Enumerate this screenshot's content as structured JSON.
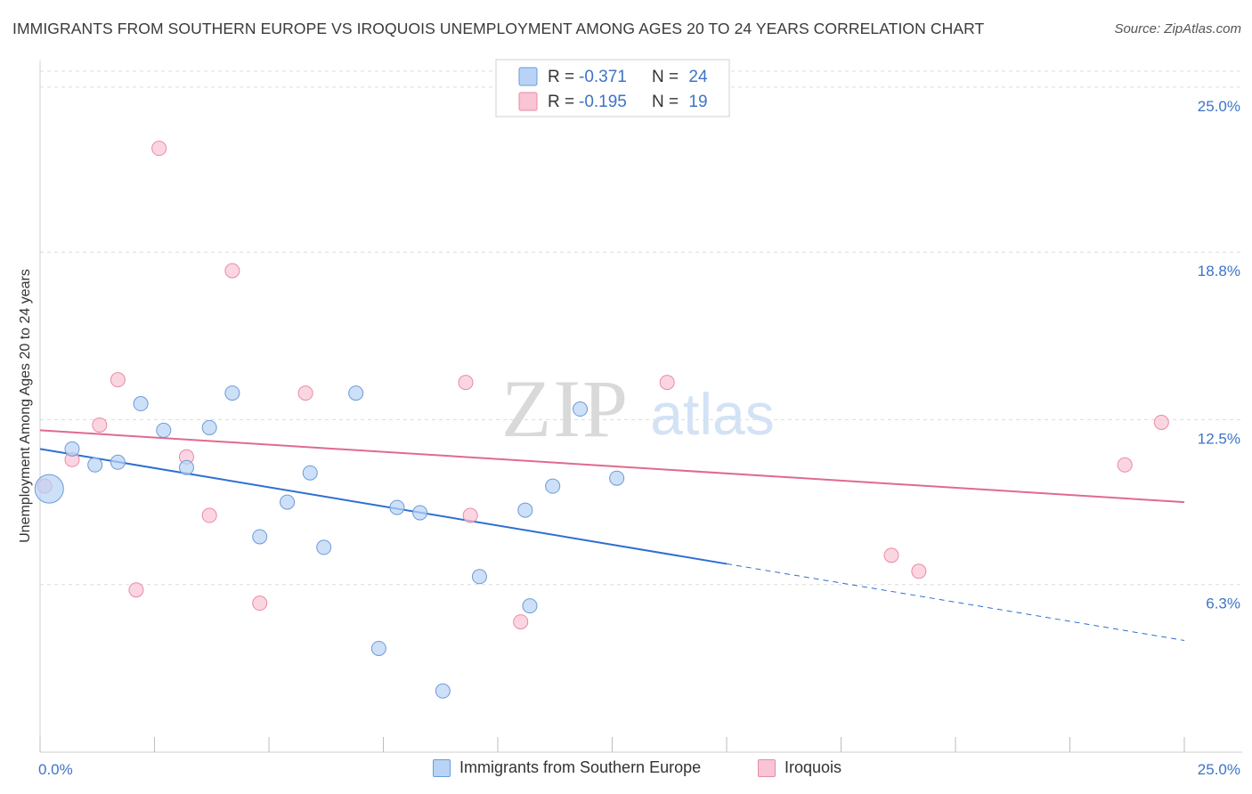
{
  "title": "IMMIGRANTS FROM SOUTHERN EUROPE VS IROQUOIS UNEMPLOYMENT AMONG AGES 20 TO 24 YEARS CORRELATION CHART",
  "source": "Source: ZipAtlas.com",
  "watermark": {
    "zip": "ZIP",
    "atlas": "atlas"
  },
  "colors": {
    "blue_fill": "#b8d3f5",
    "blue_stroke": "#6b9bd8",
    "blue_line": "#2e6fd1",
    "pink_fill": "#f9c4d4",
    "pink_stroke": "#e98aa6",
    "pink_line": "#e06a8f",
    "tick_text": "#3d74c6",
    "grid": "#dcdcdc"
  },
  "stats_legend": [
    {
      "series": "blue",
      "r_label": "R =",
      "r_value": "-0.371",
      "n_label": "N =",
      "n_value": "24"
    },
    {
      "series": "pink",
      "r_label": "R =",
      "r_value": "-0.195",
      "n_label": "N =",
      "n_value": "19"
    }
  ],
  "chart_data": {
    "type": "scatter",
    "title": "IMMIGRANTS FROM SOUTHERN EUROPE VS IROQUOIS UNEMPLOYMENT AMONG AGES 20 TO 24 YEARS CORRELATION CHART",
    "xlabel": "",
    "ylabel": "Unemployment Among Ages 20 to 24 years",
    "xlim": [
      0,
      25
    ],
    "ylim": [
      0,
      25.6
    ],
    "x_tick_labels": [
      {
        "value": 0,
        "label": "0.0%"
      },
      {
        "value": 25,
        "label": "25.0%"
      }
    ],
    "y_tick_labels": [
      {
        "value": 6.3,
        "label": "6.3%"
      },
      {
        "value": 12.5,
        "label": "12.5%"
      },
      {
        "value": 18.8,
        "label": "18.8%"
      },
      {
        "value": 25.0,
        "label": "25.0%"
      }
    ],
    "legend": [
      "Immigrants from Southern Europe",
      "Iroquois"
    ],
    "series": [
      {
        "name": "Immigrants from Southern Europe",
        "key": "blue",
        "points": [
          {
            "x": 0.2,
            "y": 9.9,
            "large": true
          },
          {
            "x": 0.7,
            "y": 11.4
          },
          {
            "x": 1.2,
            "y": 10.8
          },
          {
            "x": 1.7,
            "y": 10.9
          },
          {
            "x": 2.2,
            "y": 13.1
          },
          {
            "x": 2.7,
            "y": 12.1
          },
          {
            "x": 3.2,
            "y": 10.7
          },
          {
            "x": 3.7,
            "y": 12.2
          },
          {
            "x": 4.2,
            "y": 13.5
          },
          {
            "x": 4.8,
            "y": 8.1
          },
          {
            "x": 5.4,
            "y": 9.4
          },
          {
            "x": 5.9,
            "y": 10.5
          },
          {
            "x": 6.2,
            "y": 7.7
          },
          {
            "x": 6.9,
            "y": 13.5
          },
          {
            "x": 7.4,
            "y": 3.9
          },
          {
            "x": 7.8,
            "y": 9.2
          },
          {
            "x": 8.3,
            "y": 9.0
          },
          {
            "x": 8.8,
            "y": 2.3
          },
          {
            "x": 9.6,
            "y": 6.6
          },
          {
            "x": 10.6,
            "y": 9.1
          },
          {
            "x": 10.7,
            "y": 5.5
          },
          {
            "x": 11.2,
            "y": 10.0
          },
          {
            "x": 11.8,
            "y": 12.9
          },
          {
            "x": 12.6,
            "y": 10.3
          }
        ],
        "trend": {
          "x_start": 0,
          "y_start": 11.4,
          "x_solid_end": 15.0,
          "x_end": 25.0,
          "y_end": 4.2
        }
      },
      {
        "name": "Iroquois",
        "key": "pink",
        "points": [
          {
            "x": 0.1,
            "y": 10.0
          },
          {
            "x": 0.7,
            "y": 11.0
          },
          {
            "x": 1.3,
            "y": 12.3
          },
          {
            "x": 1.7,
            "y": 14.0
          },
          {
            "x": 2.1,
            "y": 6.1
          },
          {
            "x": 2.6,
            "y": 22.7
          },
          {
            "x": 3.2,
            "y": 11.1
          },
          {
            "x": 3.7,
            "y": 8.9
          },
          {
            "x": 4.2,
            "y": 18.1
          },
          {
            "x": 4.8,
            "y": 5.6
          },
          {
            "x": 5.8,
            "y": 13.5
          },
          {
            "x": 9.3,
            "y": 13.9
          },
          {
            "x": 9.4,
            "y": 8.9
          },
          {
            "x": 10.5,
            "y": 4.9
          },
          {
            "x": 13.7,
            "y": 13.9
          },
          {
            "x": 18.6,
            "y": 7.4
          },
          {
            "x": 19.2,
            "y": 6.8
          },
          {
            "x": 23.7,
            "y": 10.8
          },
          {
            "x": 24.5,
            "y": 12.4
          }
        ],
        "trend": {
          "x_start": 0,
          "y_start": 12.1,
          "x_end": 25.0,
          "y_end": 9.4
        }
      }
    ]
  }
}
